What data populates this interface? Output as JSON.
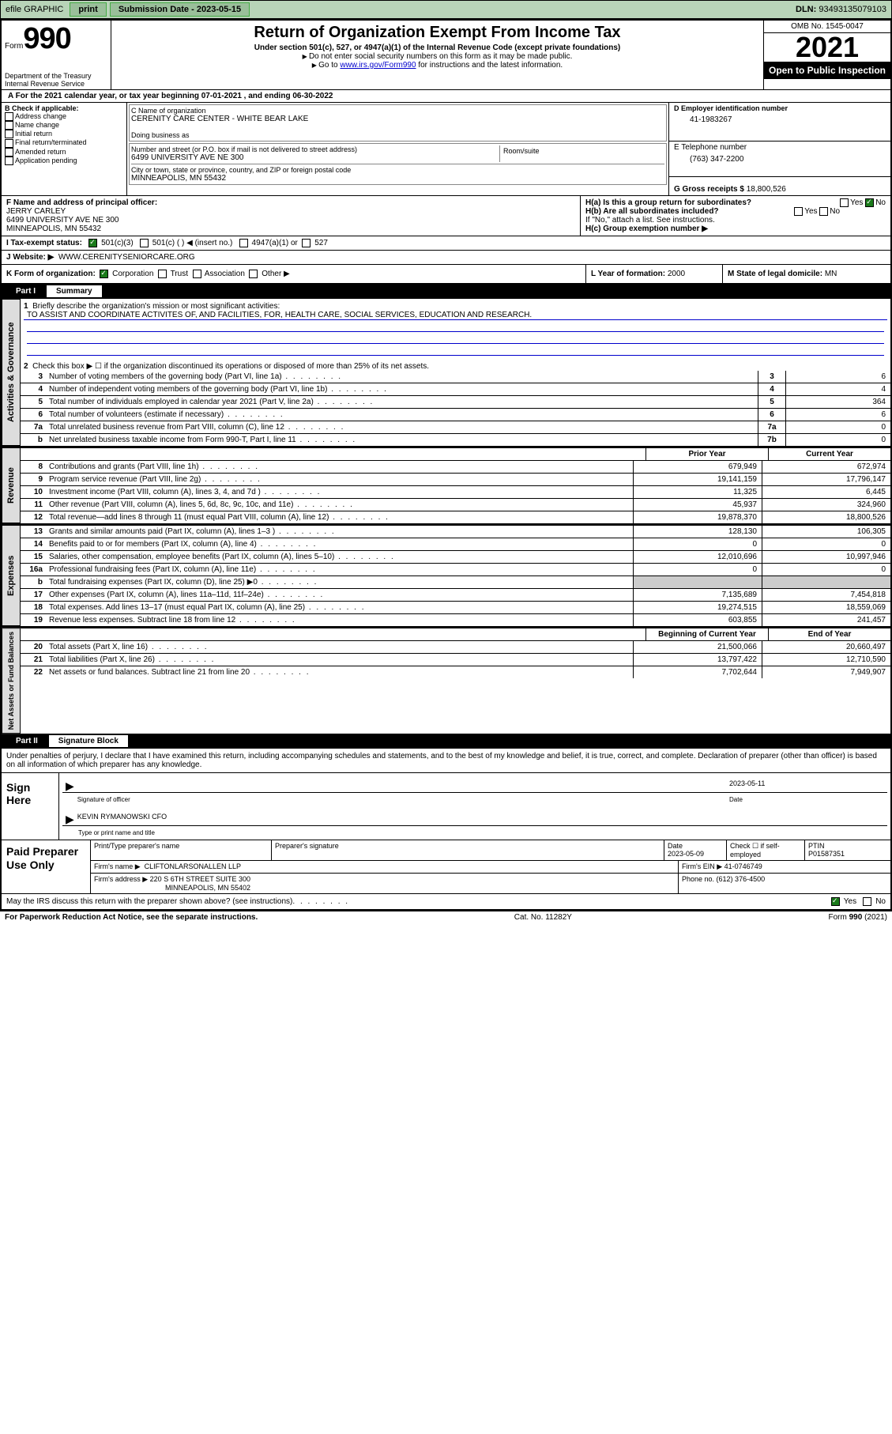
{
  "topbar": {
    "efile": "efile GRAPHIC",
    "print": "print",
    "subdate_label": "Submission Date - ",
    "subdate": "2023-05-15",
    "dln_label": "DLN: ",
    "dln": "93493135079103"
  },
  "header": {
    "form_word": "Form",
    "form_num": "990",
    "title": "Return of Organization Exempt From Income Tax",
    "subtitle": "Under section 501(c), 527, or 4947(a)(1) of the Internal Revenue Code (except private foundations)",
    "note1": "Do not enter social security numbers on this form as it may be made public.",
    "note2_pre": "Go to ",
    "note2_link": "www.irs.gov/Form990",
    "note2_post": " for instructions and the latest information.",
    "omb": "OMB No. 1545-0047",
    "year": "2021",
    "open": "Open to Public Inspection",
    "dept": "Department of the Treasury Internal Revenue Service"
  },
  "period": {
    "prefix": "A For the 2021 calendar year, or tax year beginning ",
    "begin": "07-01-2021",
    "mid": " , and ending ",
    "end": "06-30-2022"
  },
  "boxB": {
    "label": "B Check if applicable:",
    "opts": [
      "Address change",
      "Name change",
      "Initial return",
      "Final return/terminated",
      "Amended return",
      "Application pending"
    ]
  },
  "boxC": {
    "name_label": "C Name of organization",
    "name": "CERENITY CARE CENTER - WHITE BEAR LAKE",
    "dba_label": "Doing business as",
    "addr_label": "Number and street (or P.O. box if mail is not delivered to street address)",
    "room_label": "Room/suite",
    "addr": "6499 UNIVERSITY AVE NE 300",
    "city_label": "City or town, state or province, country, and ZIP or foreign postal code",
    "city": "MINNEAPOLIS, MN  55432"
  },
  "boxD": {
    "label": "D Employer identification number",
    "val": "41-1983267"
  },
  "boxE": {
    "label": "E Telephone number",
    "val": "(763) 347-2200"
  },
  "boxG": {
    "label": "G Gross receipts $ ",
    "val": "18,800,526"
  },
  "boxF": {
    "label": "F Name and address of principal officer:",
    "name": "JERRY CARLEY",
    "addr1": "6499 UNIVERSITY AVE NE 300",
    "addr2": "MINNEAPOLIS, MN  55432"
  },
  "boxH": {
    "a": "H(a)  Is this a group return for subordinates?",
    "b": "H(b)  Are all subordinates included?",
    "bnote": "If \"No,\" attach a list. See instructions.",
    "c": "H(c)  Group exemption number ▶",
    "yes": "Yes",
    "no": "No"
  },
  "boxI": {
    "label": "I   Tax-exempt status:",
    "o1": "501(c)(3)",
    "o2": "501(c) (  ) ◀ (insert no.)",
    "o3": "4947(a)(1) or",
    "o4": "527"
  },
  "boxJ": {
    "label": "J   Website: ▶",
    "val": "WWW.CERENITYSENIORCARE.ORG"
  },
  "boxK": {
    "label": "K Form of organization:",
    "o1": "Corporation",
    "o2": "Trust",
    "o3": "Association",
    "o4": "Other ▶"
  },
  "boxL": {
    "label": "L Year of formation: ",
    "val": "2000"
  },
  "boxM": {
    "label": "M State of legal domicile: ",
    "val": "MN"
  },
  "partI": {
    "label": "Part I",
    "title": "Summary",
    "q1": "Briefly describe the organization's mission or most significant activities:",
    "mission": "TO ASSIST AND COORDINATE ACTIVITES OF, AND FACILITIES, FOR, HEALTH CARE, SOCIAL SERVICES, EDUCATION AND RESEARCH.",
    "q2": "Check this box ▶ ☐  if the organization discontinued its operations or disposed of more than 25% of its net assets.",
    "rows_gov": [
      {
        "n": "3",
        "d": "Number of voting members of the governing body (Part VI, line 1a)",
        "b": "3",
        "v": "6"
      },
      {
        "n": "4",
        "d": "Number of independent voting members of the governing body (Part VI, line 1b)",
        "b": "4",
        "v": "4"
      },
      {
        "n": "5",
        "d": "Total number of individuals employed in calendar year 2021 (Part V, line 2a)",
        "b": "5",
        "v": "364"
      },
      {
        "n": "6",
        "d": "Total number of volunteers (estimate if necessary)",
        "b": "6",
        "v": "6"
      },
      {
        "n": "7a",
        "d": "Total unrelated business revenue from Part VIII, column (C), line 12",
        "b": "7a",
        "v": "0"
      },
      {
        "n": "b",
        "d": "Net unrelated business taxable income from Form 990-T, Part I, line 11",
        "b": "7b",
        "v": "0"
      }
    ],
    "hdr_prior": "Prior Year",
    "hdr_curr": "Current Year",
    "rows_rev": [
      {
        "n": "8",
        "d": "Contributions and grants (Part VIII, line 1h)",
        "p": "679,949",
        "c": "672,974"
      },
      {
        "n": "9",
        "d": "Program service revenue (Part VIII, line 2g)",
        "p": "19,141,159",
        "c": "17,796,147"
      },
      {
        "n": "10",
        "d": "Investment income (Part VIII, column (A), lines 3, 4, and 7d )",
        "p": "11,325",
        "c": "6,445"
      },
      {
        "n": "11",
        "d": "Other revenue (Part VIII, column (A), lines 5, 6d, 8c, 9c, 10c, and 11e)",
        "p": "45,937",
        "c": "324,960"
      },
      {
        "n": "12",
        "d": "Total revenue—add lines 8 through 11 (must equal Part VIII, column (A), line 12)",
        "p": "19,878,370",
        "c": "18,800,526"
      }
    ],
    "rows_exp": [
      {
        "n": "13",
        "d": "Grants and similar amounts paid (Part IX, column (A), lines 1–3 )",
        "p": "128,130",
        "c": "106,305"
      },
      {
        "n": "14",
        "d": "Benefits paid to or for members (Part IX, column (A), line 4)",
        "p": "0",
        "c": "0"
      },
      {
        "n": "15",
        "d": "Salaries, other compensation, employee benefits (Part IX, column (A), lines 5–10)",
        "p": "12,010,696",
        "c": "10,997,946"
      },
      {
        "n": "16a",
        "d": "Professional fundraising fees (Part IX, column (A), line 11e)",
        "p": "0",
        "c": "0"
      },
      {
        "n": "b",
        "d": "Total fundraising expenses (Part IX, column (D), line 25) ▶0",
        "p": "",
        "c": "",
        "grey": true
      },
      {
        "n": "17",
        "d": "Other expenses (Part IX, column (A), lines 11a–11d, 11f–24e)",
        "p": "7,135,689",
        "c": "7,454,818"
      },
      {
        "n": "18",
        "d": "Total expenses. Add lines 13–17 (must equal Part IX, column (A), line 25)",
        "p": "19,274,515",
        "c": "18,559,069"
      },
      {
        "n": "19",
        "d": "Revenue less expenses. Subtract line 18 from line 12",
        "p": "603,855",
        "c": "241,457"
      }
    ],
    "hdr_beg": "Beginning of Current Year",
    "hdr_end": "End of Year",
    "rows_net": [
      {
        "n": "20",
        "d": "Total assets (Part X, line 16)",
        "p": "21,500,066",
        "c": "20,660,497"
      },
      {
        "n": "21",
        "d": "Total liabilities (Part X, line 26)",
        "p": "13,797,422",
        "c": "12,710,590"
      },
      {
        "n": "22",
        "d": "Net assets or fund balances. Subtract line 21 from line 20",
        "p": "7,702,644",
        "c": "7,949,907"
      }
    ],
    "tab_gov": "Activities & Governance",
    "tab_rev": "Revenue",
    "tab_exp": "Expenses",
    "tab_net": "Net Assets or Fund Balances"
  },
  "partII": {
    "label": "Part II",
    "title": "Signature Block",
    "decl": "Under penalties of perjury, I declare that I have examined this return, including accompanying schedules and statements, and to the best of my knowledge and belief, it is true, correct, and complete. Declaration of preparer (other than officer) is based on all information of which preparer has any knowledge.",
    "sign_here": "Sign Here",
    "sig_officer": "Signature of officer",
    "sig_date": "2023-05-11",
    "date_label": "Date",
    "officer_name": "KEVIN RYMANOWSKI CFO",
    "officer_caption": "Type or print name and title",
    "paid_label": "Paid Preparer Use Only",
    "prep_name_label": "Print/Type preparer's name",
    "prep_sig_label": "Preparer's signature",
    "prep_date_label": "Date",
    "prep_date": "2023-05-09",
    "check_if": "Check ☐ if self-employed",
    "ptin_label": "PTIN",
    "ptin": "P01587351",
    "firm_name_label": "Firm's name    ▶",
    "firm_name": "CLIFTONLARSONALLEN LLP",
    "firm_ein_label": "Firm's EIN ▶",
    "firm_ein": "41-0746749",
    "firm_addr_label": "Firm's address ▶",
    "firm_addr1": "220 S 6TH STREET SUITE 300",
    "firm_addr2": "MINNEAPOLIS, MN  55402",
    "phone_label": "Phone no. ",
    "phone": "(612) 376-4500",
    "discuss": "May the IRS discuss this return with the preparer shown above? (see instructions)",
    "yes": "Yes",
    "no": "No"
  },
  "footer": {
    "left": "For Paperwork Reduction Act Notice, see the separate instructions.",
    "mid": "Cat. No. 11282Y",
    "right": "Form 990 (2021)"
  }
}
